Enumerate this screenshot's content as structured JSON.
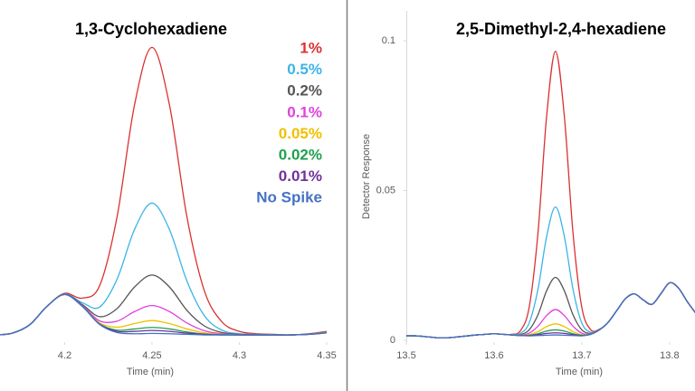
{
  "chart_data": [
    {
      "type": "line",
      "title": "1,3-Cyclohexadiene",
      "x_label": "Time (min)",
      "x": [
        4.16,
        4.17,
        4.18,
        4.19,
        4.2,
        4.21,
        4.22,
        4.23,
        4.24,
        4.25,
        4.26,
        4.27,
        4.28,
        4.29,
        4.3,
        4.31,
        4.32,
        4.33,
        4.34,
        4.35
      ],
      "xlim": [
        4.163,
        4.35
      ],
      "xticks": [
        4.2,
        4.25,
        4.3,
        4.35
      ],
      "ylim": [
        -0.0006,
        0.11
      ],
      "legend": "right",
      "series": [
        {
          "name": "1%",
          "color": "#dc3030",
          "values": [
            0.0018,
            0.0024,
            0.0052,
            0.0114,
            0.0157,
            0.0141,
            0.0182,
            0.0412,
            0.0786,
            0.0978,
            0.0786,
            0.0412,
            0.0165,
            0.0062,
            0.003,
            0.0022,
            0.002,
            0.0018,
            0.0022,
            0.003
          ]
        },
        {
          "name": "0.5%",
          "color": "#3cb4e6",
          "values": [
            0.0018,
            0.0024,
            0.0052,
            0.0114,
            0.0155,
            0.0126,
            0.0111,
            0.0204,
            0.037,
            0.0458,
            0.037,
            0.0198,
            0.0082,
            0.0034,
            0.0022,
            0.002,
            0.0019,
            0.0018,
            0.0021,
            0.0028
          ]
        },
        {
          "name": "0.2%",
          "color": "#555555",
          "values": [
            0.0018,
            0.0024,
            0.0052,
            0.0114,
            0.0154,
            0.012,
            0.0079,
            0.0106,
            0.0178,
            0.0218,
            0.0178,
            0.01,
            0.0048,
            0.0026,
            0.002,
            0.0019,
            0.0018,
            0.0018,
            0.0021,
            0.0027
          ]
        },
        {
          "name": "0.1%",
          "color": "#e040e0",
          "values": [
            0.0018,
            0.0024,
            0.0052,
            0.0114,
            0.0153,
            0.0117,
            0.0065,
            0.0064,
            0.0096,
            0.0116,
            0.0096,
            0.0058,
            0.0032,
            0.0022,
            0.0019,
            0.0018,
            0.0018,
            0.0018,
            0.002,
            0.0026
          ]
        },
        {
          "name": "0.05%",
          "color": "#f0c000",
          "values": [
            0.0018,
            0.0024,
            0.0052,
            0.0114,
            0.0153,
            0.0115,
            0.0058,
            0.0044,
            0.0056,
            0.0066,
            0.0056,
            0.0038,
            0.0025,
            0.002,
            0.0018,
            0.0018,
            0.0018,
            0.0018,
            0.002,
            0.0026
          ]
        },
        {
          "name": "0.02%",
          "color": "#20a050",
          "values": [
            0.0018,
            0.0024,
            0.0052,
            0.0114,
            0.0153,
            0.0115,
            0.0055,
            0.0034,
            0.0038,
            0.0043,
            0.0038,
            0.0028,
            0.0021,
            0.0019,
            0.0018,
            0.0018,
            0.0018,
            0.0018,
            0.002,
            0.0025
          ]
        },
        {
          "name": "0.01%",
          "color": "#7030a0",
          "values": [
            0.0018,
            0.0024,
            0.0052,
            0.0114,
            0.0153,
            0.0114,
            0.0054,
            0.003,
            0.003,
            0.0033,
            0.003,
            0.0024,
            0.002,
            0.0018,
            0.0018,
            0.0018,
            0.0018,
            0.0018,
            0.002,
            0.0025
          ]
        },
        {
          "name": "No Spike",
          "color": "#4472c4",
          "values": [
            0.0018,
            0.0024,
            0.0052,
            0.0114,
            0.0153,
            0.0114,
            0.0053,
            0.0026,
            0.0022,
            0.0023,
            0.0022,
            0.002,
            0.0018,
            0.0018,
            0.0018,
            0.0018,
            0.0018,
            0.0018,
            0.002,
            0.0025
          ]
        }
      ]
    },
    {
      "type": "line",
      "title": "2,5-Dimethyl-2,4-hexadiene",
      "x_label": "Time (min)",
      "y_label": "Detector Response",
      "x": [
        13.5,
        13.51,
        13.52,
        13.53,
        13.54,
        13.55,
        13.56,
        13.57,
        13.58,
        13.59,
        13.6,
        13.61,
        13.62,
        13.63,
        13.64,
        13.65,
        13.66,
        13.67,
        13.68,
        13.69,
        13.7,
        13.71,
        13.72,
        13.73,
        13.74,
        13.75,
        13.76,
        13.77,
        13.78,
        13.79,
        13.8,
        13.81,
        13.82,
        13.83
      ],
      "xlim": [
        13.5,
        13.829
      ],
      "xticks": [
        13.5,
        13.6,
        13.7,
        13.8
      ],
      "ylim": [
        -0.0006,
        0.11
      ],
      "yticks": [
        0,
        0.05,
        0.1
      ],
      "series": [
        {
          "name": "1%",
          "color": "#dc3030",
          "values": [
            0.0015,
            0.0015,
            0.0013,
            0.001,
            0.0008,
            0.0009,
            0.0012,
            0.0015,
            0.0018,
            0.002,
            0.0022,
            0.002,
            0.002,
            0.0032,
            0.011,
            0.0357,
            0.0751,
            0.0965,
            0.0751,
            0.0357,
            0.011,
            0.0036,
            0.0037,
            0.006,
            0.01,
            0.014,
            0.0155,
            0.0135,
            0.012,
            0.0155,
            0.0192,
            0.0175,
            0.013,
            0.009
          ]
        },
        {
          "name": "0.5%",
          "color": "#3cb4e6",
          "values": [
            0.0015,
            0.0015,
            0.0013,
            0.001,
            0.0008,
            0.0009,
            0.0012,
            0.0015,
            0.0018,
            0.002,
            0.0022,
            0.002,
            0.0019,
            0.0023,
            0.0058,
            0.017,
            0.0348,
            0.0445,
            0.0348,
            0.017,
            0.0058,
            0.0027,
            0.0036,
            0.006,
            0.01,
            0.014,
            0.0155,
            0.0135,
            0.012,
            0.0155,
            0.0192,
            0.0175,
            0.013,
            0.009
          ]
        },
        {
          "name": "0.2%",
          "color": "#555555",
          "values": [
            0.0015,
            0.0015,
            0.0013,
            0.001,
            0.0008,
            0.0009,
            0.0012,
            0.0015,
            0.0018,
            0.002,
            0.0022,
            0.002,
            0.0018,
            0.0019,
            0.0035,
            0.0085,
            0.0166,
            0.021,
            0.0166,
            0.0085,
            0.0035,
            0.0023,
            0.0035,
            0.006,
            0.01,
            0.014,
            0.0155,
            0.0135,
            0.012,
            0.0155,
            0.0192,
            0.0175,
            0.013,
            0.009
          ]
        },
        {
          "name": "0.1%",
          "color": "#e040e0",
          "values": [
            0.0015,
            0.0015,
            0.0013,
            0.001,
            0.0008,
            0.0009,
            0.0012,
            0.0015,
            0.0018,
            0.002,
            0.0022,
            0.002,
            0.0018,
            0.0017,
            0.0024,
            0.0047,
            0.0083,
            0.0103,
            0.0083,
            0.0047,
            0.0024,
            0.0021,
            0.0035,
            0.006,
            0.01,
            0.014,
            0.0155,
            0.0135,
            0.012,
            0.0155,
            0.0192,
            0.0175,
            0.013,
            0.009
          ]
        },
        {
          "name": "0.05%",
          "color": "#f0c000",
          "values": [
            0.0015,
            0.0015,
            0.0013,
            0.001,
            0.0008,
            0.0009,
            0.0012,
            0.0015,
            0.0018,
            0.002,
            0.0022,
            0.002,
            0.0018,
            0.0017,
            0.0019,
            0.0029,
            0.0046,
            0.0055,
            0.0046,
            0.0029,
            0.0019,
            0.0021,
            0.0035,
            0.006,
            0.01,
            0.014,
            0.0155,
            0.0135,
            0.012,
            0.0155,
            0.0192,
            0.0175,
            0.013,
            0.009
          ]
        },
        {
          "name": "0.02%",
          "color": "#20a050",
          "values": [
            0.0015,
            0.0015,
            0.0013,
            0.001,
            0.0008,
            0.0009,
            0.0012,
            0.0015,
            0.0018,
            0.002,
            0.0022,
            0.002,
            0.0018,
            0.0016,
            0.0017,
            0.0022,
            0.0031,
            0.0035,
            0.0031,
            0.0022,
            0.0017,
            0.002,
            0.0035,
            0.006,
            0.01,
            0.014,
            0.0155,
            0.0135,
            0.012,
            0.0155,
            0.0192,
            0.0175,
            0.013,
            0.009
          ]
        },
        {
          "name": "0.01%",
          "color": "#7030a0",
          "values": [
            0.0015,
            0.0015,
            0.0013,
            0.001,
            0.0008,
            0.0009,
            0.0012,
            0.0015,
            0.0018,
            0.002,
            0.0022,
            0.002,
            0.0018,
            0.0016,
            0.0016,
            0.0019,
            0.0023,
            0.0025,
            0.0023,
            0.0019,
            0.0016,
            0.002,
            0.0035,
            0.006,
            0.01,
            0.014,
            0.0155,
            0.0135,
            0.012,
            0.0155,
            0.0192,
            0.0175,
            0.013,
            0.009
          ]
        },
        {
          "name": "No Spike",
          "color": "#4472c4",
          "values": [
            0.0015,
            0.0015,
            0.0013,
            0.001,
            0.0008,
            0.0009,
            0.0012,
            0.0015,
            0.0018,
            0.002,
            0.0022,
            0.002,
            0.0018,
            0.0016,
            0.0015,
            0.0016,
            0.0017,
            0.0018,
            0.0017,
            0.0016,
            0.0015,
            0.002,
            0.0035,
            0.006,
            0.01,
            0.014,
            0.0155,
            0.0135,
            0.012,
            0.0155,
            0.0192,
            0.0175,
            0.013,
            0.009
          ]
        }
      ]
    }
  ]
}
